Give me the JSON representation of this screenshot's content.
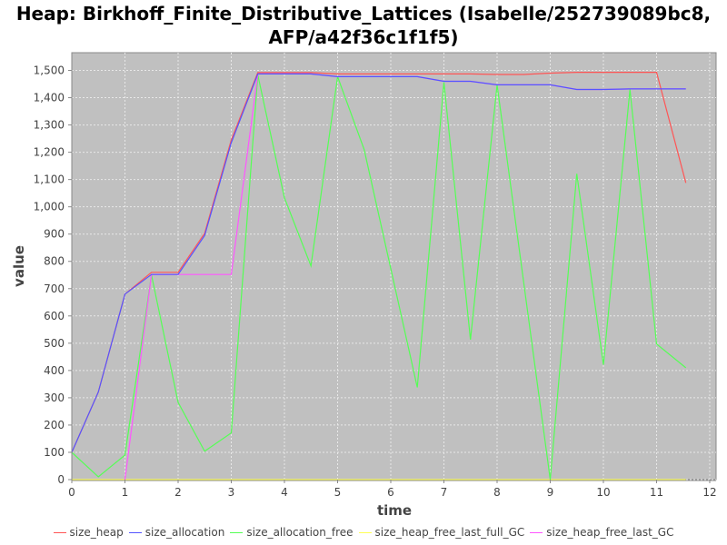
{
  "chart_data": {
    "type": "line",
    "title": "Heap: Birkhoff_Finite_Distributive_Lattices (Isabelle/252739089bc8, AFP/a42f36c1f1f5)",
    "title_lines": [
      "Heap: Birkhoff_Finite_Distributive_Lattices (Isabelle/252739089bc8,",
      "AFP/a42f36c1f1f5)"
    ],
    "xlabel": "time",
    "ylabel": "value",
    "xlim": [
      0,
      12.12
    ],
    "ylim": [
      0,
      1565
    ],
    "xticks": [
      0,
      1,
      2,
      3,
      4,
      5,
      6,
      7,
      8,
      9,
      10,
      11,
      12
    ],
    "yticks": [
      0,
      100,
      200,
      300,
      400,
      500,
      600,
      700,
      800,
      900,
      1000,
      1100,
      1200,
      1300,
      1400,
      1500
    ],
    "ytick_labels": [
      "0",
      "100",
      "200",
      "300",
      "400",
      "500",
      "600",
      "700",
      "800",
      "900",
      "1,000",
      "1,100",
      "1,200",
      "1,300",
      "1,400",
      "1,500"
    ],
    "grid": true,
    "background": "#c0c0c0",
    "legend_placement": "bottom",
    "x": [
      0,
      0.5,
      1,
      1.5,
      2,
      2.5,
      3,
      3.5,
      4,
      4.5,
      5,
      5.5,
      6,
      6.5,
      7,
      7.5,
      8,
      8.5,
      9,
      9.5,
      10,
      10.5,
      11,
      11.55
    ],
    "series": [
      {
        "name": "size_heap",
        "color": "#ff5555",
        "values": [
          100,
          321,
          680,
          760,
          760,
          903,
          1245,
          1492,
          1492,
          1492,
          1487,
          1487,
          1487,
          1487,
          1487,
          1487,
          1485,
          1485,
          1490,
          1493,
          1493,
          1493,
          1493,
          1088
        ]
      },
      {
        "name": "size_allocation",
        "color": "#5555ff",
        "values": [
          100,
          321,
          680,
          752,
          752,
          895,
          1235,
          1487,
          1487,
          1487,
          1477,
          1477,
          1477,
          1477,
          1460,
          1460,
          1447,
          1447,
          1447,
          1430,
          1430,
          1432,
          1432,
          1432
        ]
      },
      {
        "name": "size_allocation_free",
        "color": "#55ff55",
        "values": [
          100,
          10,
          90,
          750,
          283,
          104,
          171,
          1483,
          1033,
          783,
          1477,
          1210,
          774,
          338,
          1457,
          513,
          1447,
          725,
          0,
          1121,
          421,
          1430,
          497,
          410
        ]
      },
      {
        "name": "size_heap_free_last_full_GC",
        "color": "#ffff55",
        "values": [
          0,
          0,
          0,
          0,
          0,
          0,
          0,
          0,
          0,
          0,
          0,
          0,
          0,
          0,
          0,
          0,
          0,
          0,
          0,
          0,
          0,
          0,
          0,
          0
        ]
      },
      {
        "name": "size_heap_free_last_GC",
        "color": "#ff55ff",
        "values": [
          null,
          null,
          0,
          752,
          752,
          752,
          752,
          1487,
          1487,
          1487,
          1477,
          1477,
          1477,
          1477,
          1460,
          1460,
          1447,
          1447,
          1447,
          1430,
          1430,
          1432,
          1432,
          1432
        ]
      }
    ]
  }
}
